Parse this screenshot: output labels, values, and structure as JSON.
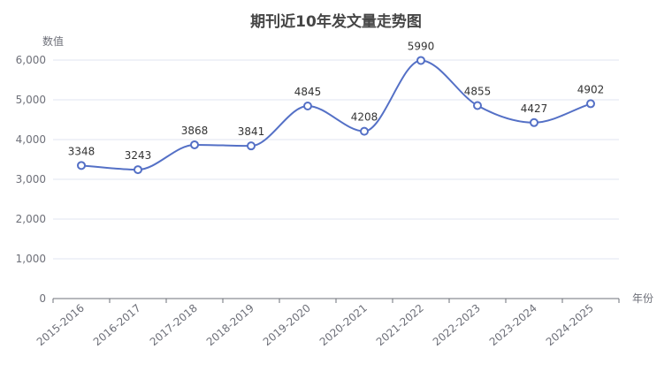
{
  "chart_data": {
    "type": "line",
    "title": "期刊近10年发文量走势图",
    "xlabel": "年份",
    "ylabel": "数值",
    "categories": [
      "2015-2016",
      "2016-2017",
      "2017-2018",
      "2018-2019",
      "2019-2020",
      "2020-2021",
      "2021-2022",
      "2022-2023",
      "2023-2024",
      "2024-2025"
    ],
    "values": [
      3348,
      3243,
      3868,
      3841,
      4845,
      4208,
      5990,
      4855,
      4427,
      4902
    ],
    "ylim": [
      0,
      6000
    ],
    "yticks": [
      0,
      1000,
      2000,
      3000,
      4000,
      5000,
      6000
    ],
    "ytick_labels": [
      "0",
      "1,000",
      "2,000",
      "3,000",
      "4,000",
      "5,000",
      "6,000"
    ],
    "smooth": true,
    "grid": true,
    "legend": "none",
    "colors": {
      "line": "#5470c6",
      "grid": "#e0e6f1",
      "axis": "#6e7079",
      "marker_fill": "#ffffff"
    }
  }
}
